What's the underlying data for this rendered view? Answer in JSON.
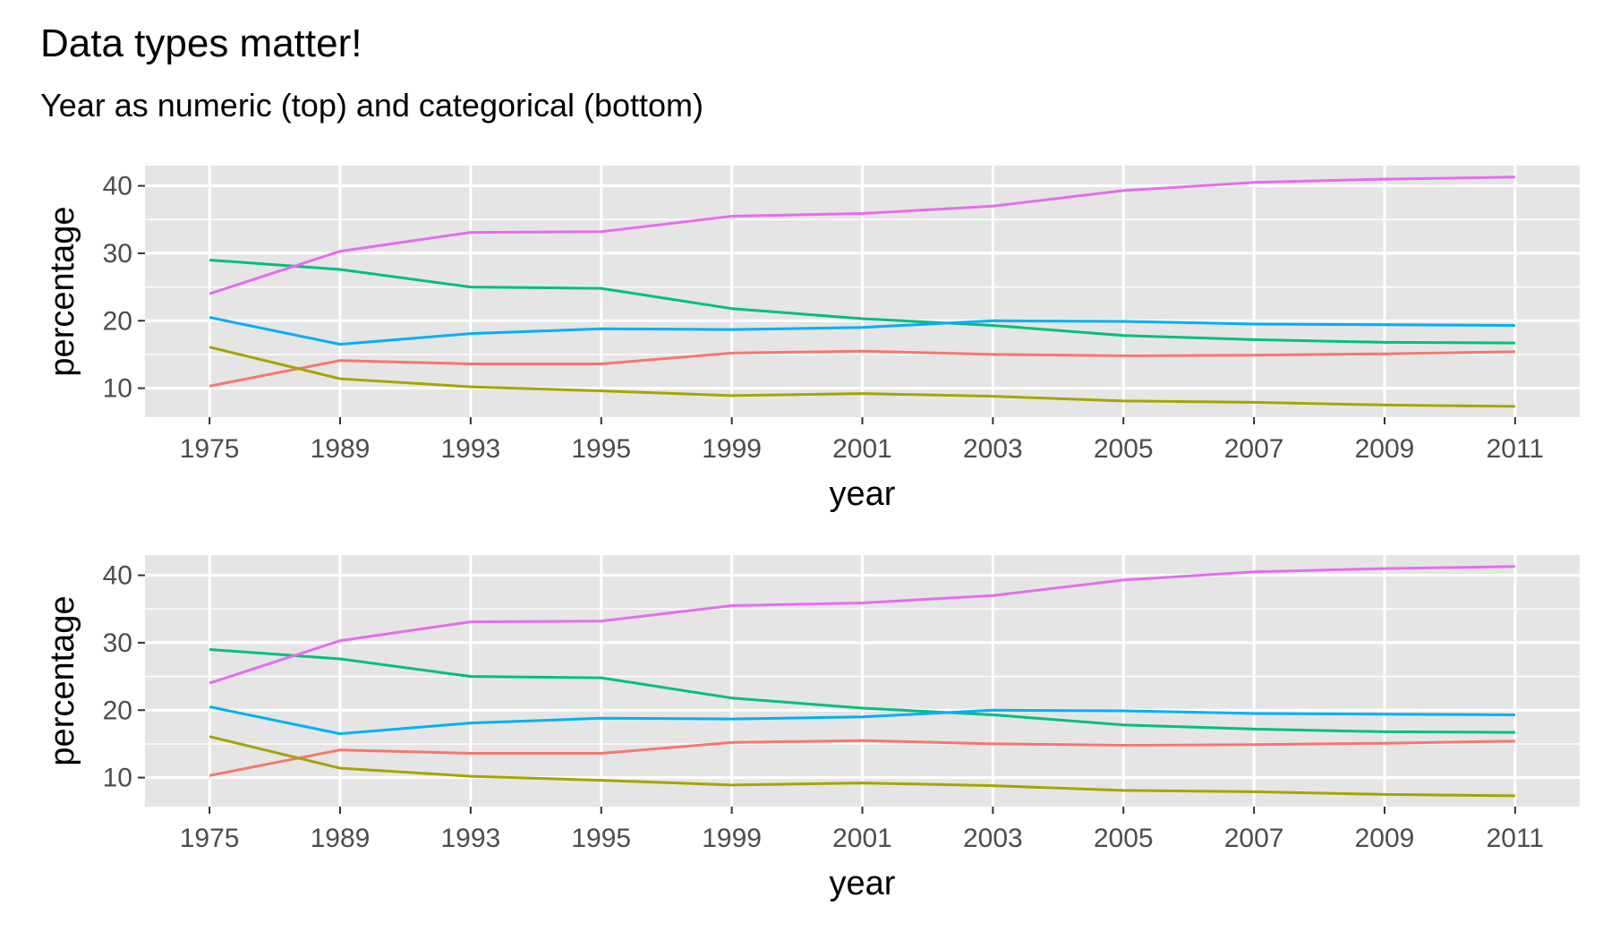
{
  "chart_title": "Data types matter!",
  "chart_subtitle": "Year as numeric (top) and categorical (bottom)",
  "colors": {
    "panel_background": "#e5e5e5",
    "grid": "#ffffff",
    "series": [
      "#f8766d",
      "#a3a500",
      "#00bf7d",
      "#00b0f6",
      "#e76bf3"
    ]
  },
  "chart_data": [
    {
      "type": "line",
      "panel": "top",
      "xlabel": "year",
      "ylabel": "percentage",
      "x_axis_kind": "numeric",
      "x": [
        "1975",
        "1989",
        "1993",
        "1995",
        "1999",
        "2001",
        "2003",
        "2005",
        "2007",
        "2009",
        "2011"
      ],
      "y_ticks": [
        10,
        20,
        30,
        40
      ],
      "ylim": [
        5.7,
        43
      ],
      "grid": true,
      "legend": "none",
      "series": [
        {
          "color": "#f8766d",
          "values": [
            10.3,
            14.1,
            13.6,
            13.6,
            15.2,
            15.5,
            15.0,
            14.8,
            14.9,
            15.1,
            15.4
          ]
        },
        {
          "color": "#a3a500",
          "values": [
            16.1,
            11.4,
            10.2,
            9.6,
            8.9,
            9.2,
            8.8,
            8.1,
            7.9,
            7.5,
            7.3
          ]
        },
        {
          "color": "#00bf7d",
          "values": [
            29.0,
            27.6,
            25.0,
            24.8,
            21.8,
            20.3,
            19.3,
            17.8,
            17.2,
            16.8,
            16.7
          ]
        },
        {
          "color": "#00b0f6",
          "values": [
            20.5,
            16.5,
            18.1,
            18.8,
            18.7,
            19.0,
            20.0,
            19.9,
            19.5,
            19.4,
            19.3
          ]
        },
        {
          "color": "#e76bf3",
          "values": [
            24.0,
            30.3,
            33.1,
            33.2,
            35.5,
            35.9,
            37.0,
            39.3,
            40.5,
            41.0,
            41.3
          ]
        }
      ]
    },
    {
      "type": "line",
      "panel": "bottom",
      "xlabel": "year",
      "ylabel": "percentage",
      "x_axis_kind": "categorical",
      "x": [
        "1975",
        "1989",
        "1993",
        "1995",
        "1999",
        "2001",
        "2003",
        "2005",
        "2007",
        "2009",
        "2011"
      ],
      "y_ticks": [
        10,
        20,
        30,
        40
      ],
      "ylim": [
        5.7,
        43
      ],
      "grid": true,
      "legend": "none",
      "series": [
        {
          "color": "#f8766d",
          "values": [
            10.3,
            14.1,
            13.6,
            13.6,
            15.2,
            15.5,
            15.0,
            14.8,
            14.9,
            15.1,
            15.4
          ]
        },
        {
          "color": "#a3a500",
          "values": [
            16.1,
            11.4,
            10.2,
            9.6,
            8.9,
            9.2,
            8.8,
            8.1,
            7.9,
            7.5,
            7.3
          ]
        },
        {
          "color": "#00bf7d",
          "values": [
            29.0,
            27.6,
            25.0,
            24.8,
            21.8,
            20.3,
            19.3,
            17.8,
            17.2,
            16.8,
            16.7
          ]
        },
        {
          "color": "#00b0f6",
          "values": [
            20.5,
            16.5,
            18.1,
            18.8,
            18.7,
            19.0,
            20.0,
            19.9,
            19.5,
            19.4,
            19.3
          ]
        },
        {
          "color": "#e76bf3",
          "values": [
            24.0,
            30.3,
            33.1,
            33.2,
            35.5,
            35.9,
            37.0,
            39.3,
            40.5,
            41.0,
            41.3
          ]
        }
      ]
    }
  ]
}
